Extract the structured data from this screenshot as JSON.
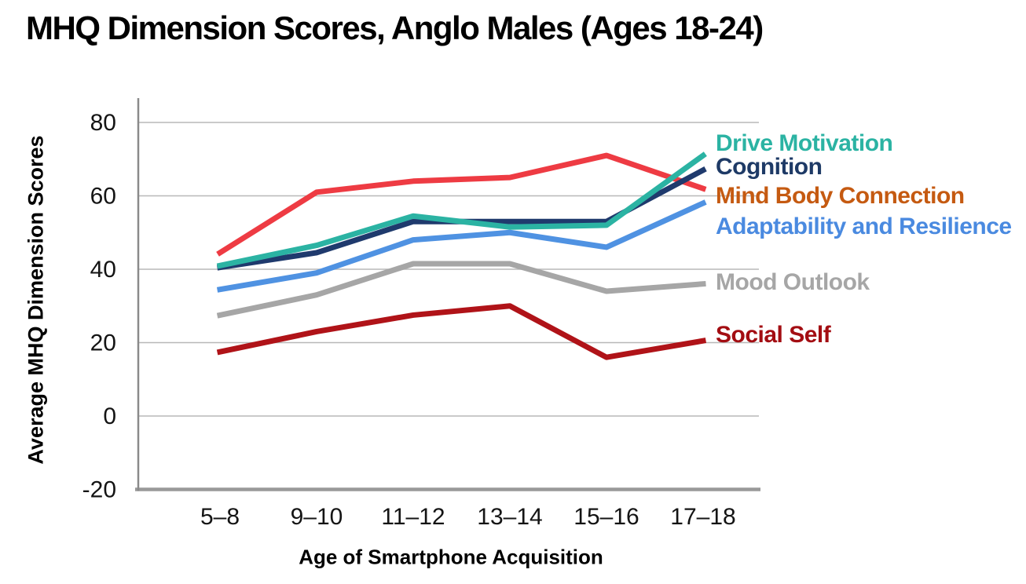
{
  "title": "MHQ Dimension Scores, Anglo Males (Ages 18-24)",
  "chart_data": {
    "type": "line",
    "title": "MHQ Dimension Scores, Anglo Males (Ages 18-24)",
    "xlabel": "Age of Smartphone Acquisition",
    "ylabel": "Average MHQ Dimension Scores",
    "categories": [
      "5–8",
      "9–10",
      "11–12",
      "13–14",
      "15–16",
      "17–18"
    ],
    "y_ticks": [
      80,
      60,
      40,
      20,
      0,
      -20
    ],
    "ylim": [
      -20,
      87
    ],
    "grid": "horizontal",
    "legend_position": "right-of-plot, color-coded text labels",
    "series": [
      {
        "name": "Drive Motivation",
        "color": "#2bb3a3",
        "legend_color": "#2bb3a3",
        "values": [
          41,
          46.5,
          54.5,
          51.5,
          52,
          71
        ]
      },
      {
        "name": "Cognition",
        "color": "#1f3a6d",
        "legend_color": "#1e3a66",
        "values": [
          40.5,
          44.5,
          53,
          53,
          53,
          67
        ]
      },
      {
        "name": "Mind Body Connection",
        "color": "#ee3b43",
        "legend_color": "#c55a11",
        "values": [
          44.5,
          61,
          64,
          65,
          71,
          62
        ]
      },
      {
        "name": "Adaptability and Resilience",
        "color": "#4f92e2",
        "legend_color": "#4a8ae0",
        "values": [
          34.5,
          39,
          48,
          50,
          46,
          58
        ]
      },
      {
        "name": "Mood Outlook",
        "color": "#a6a6a6",
        "legend_color": "#a6a6a6",
        "values": [
          27.5,
          33,
          41.5,
          41.5,
          34,
          36
        ]
      },
      {
        "name": "Social Self",
        "color": "#b01318",
        "legend_color": "#a30d12",
        "values": [
          17.5,
          23,
          27.5,
          30,
          16,
          20.5
        ]
      }
    ]
  }
}
